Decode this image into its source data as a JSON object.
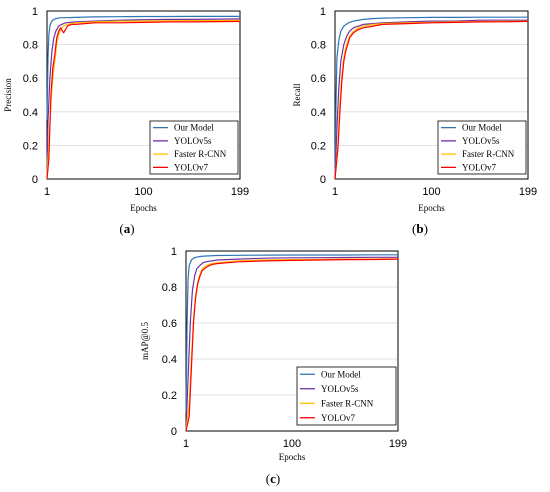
{
  "chart_data": [
    {
      "id": "a",
      "type": "line",
      "caption_letter": "a",
      "xlabel": "Epochs",
      "ylabel": "Precision",
      "xlim": [
        1,
        199
      ],
      "ylim": [
        0,
        1
      ],
      "x_ticks": [
        1,
        100,
        199
      ],
      "y_ticks": [
        0,
        0.2,
        0.4,
        0.6,
        0.8,
        1
      ],
      "x_tick_labels": [
        "1",
        "100",
        "199"
      ],
      "y_tick_labels": [
        "0",
        "0.2",
        "0.4",
        "0.6",
        "0.8",
        "1"
      ],
      "grid": "horizontal",
      "legend": "bottom-right",
      "series": [
        {
          "name": "Our Model",
          "color": "#2e75b6",
          "x": [
            1,
            2,
            3,
            4,
            5,
            6,
            8,
            10,
            15,
            20,
            30,
            50,
            75,
            100,
            125,
            150,
            175,
            199
          ],
          "y": [
            0.35,
            0.72,
            0.86,
            0.91,
            0.93,
            0.94,
            0.95,
            0.955,
            0.96,
            0.96,
            0.962,
            0.965,
            0.966,
            0.967,
            0.967,
            0.968,
            0.968,
            0.968
          ]
        },
        {
          "name": "YOLOv5s",
          "color": "#7030a0",
          "x": [
            1,
            2,
            4,
            6,
            8,
            10,
            13,
            16,
            20,
            30,
            50,
            75,
            100,
            125,
            150,
            175,
            199
          ],
          "y": [
            0.05,
            0.35,
            0.6,
            0.76,
            0.84,
            0.88,
            0.91,
            0.92,
            0.93,
            0.935,
            0.94,
            0.945,
            0.948,
            0.95,
            0.95,
            0.952,
            0.953
          ]
        },
        {
          "name": "Faster R-CNN",
          "color": "#ffc000",
          "x": [
            1,
            3,
            5,
            7,
            9,
            11,
            13,
            15,
            18,
            22,
            30,
            50,
            75,
            100,
            125,
            150,
            175,
            199
          ],
          "y": [
            0.02,
            0.2,
            0.45,
            0.6,
            0.7,
            0.8,
            0.86,
            0.89,
            0.91,
            0.92,
            0.93,
            0.935,
            0.94,
            0.94,
            0.942,
            0.943,
            0.943,
            0.944
          ]
        },
        {
          "name": "YOLOv7",
          "color": "#ff0000",
          "x": [
            1,
            3,
            5,
            7,
            9,
            11,
            13,
            15,
            18,
            22,
            26,
            30,
            40,
            50,
            75,
            100,
            125,
            150,
            175,
            199
          ],
          "y": [
            0.0,
            0.12,
            0.5,
            0.66,
            0.74,
            0.84,
            0.88,
            0.9,
            0.87,
            0.91,
            0.92,
            0.92,
            0.925,
            0.93,
            0.93,
            0.932,
            0.935,
            0.935,
            0.937,
            0.938
          ]
        }
      ]
    },
    {
      "id": "b",
      "type": "line",
      "caption_letter": "b",
      "xlabel": "Epochs",
      "ylabel": "Recall",
      "xlim": [
        1,
        199
      ],
      "ylim": [
        0,
        1
      ],
      "x_ticks": [
        1,
        100,
        199
      ],
      "y_ticks": [
        0,
        0.2,
        0.4,
        0.6,
        0.8,
        1
      ],
      "x_tick_labels": [
        "1",
        "100",
        "199"
      ],
      "y_tick_labels": [
        "0",
        "0.2",
        "0.4",
        "0.6",
        "0.8",
        "1"
      ],
      "grid": "horizontal",
      "legend": "bottom-right",
      "series": [
        {
          "name": "Our Model",
          "color": "#2e75b6",
          "x": [
            1,
            2,
            3,
            5,
            7,
            10,
            15,
            20,
            30,
            40,
            50,
            75,
            100,
            125,
            150,
            175,
            199
          ],
          "y": [
            0.0,
            0.45,
            0.72,
            0.83,
            0.88,
            0.91,
            0.93,
            0.94,
            0.95,
            0.955,
            0.958,
            0.96,
            0.962,
            0.962,
            0.963,
            0.963,
            0.963
          ]
        },
        {
          "name": "YOLOv5s",
          "color": "#7030a0",
          "x": [
            1,
            3,
            5,
            7,
            10,
            13,
            16,
            20,
            25,
            30,
            40,
            50,
            75,
            100,
            125,
            150,
            175,
            199
          ],
          "y": [
            0.0,
            0.3,
            0.55,
            0.7,
            0.8,
            0.85,
            0.88,
            0.9,
            0.91,
            0.92,
            0.925,
            0.93,
            0.935,
            0.94,
            0.94,
            0.945,
            0.945,
            0.945
          ]
        },
        {
          "name": "Faster R-CNN",
          "color": "#ffc000",
          "x": [
            1,
            4,
            6,
            8,
            10,
            12,
            14,
            16,
            20,
            25,
            30,
            40,
            50,
            75,
            100,
            125,
            150,
            175,
            199
          ],
          "y": [
            0.0,
            0.2,
            0.45,
            0.62,
            0.72,
            0.78,
            0.82,
            0.85,
            0.88,
            0.9,
            0.91,
            0.92,
            0.925,
            0.93,
            0.932,
            0.935,
            0.937,
            0.938,
            0.94
          ]
        },
        {
          "name": "YOLOv7",
          "color": "#ff0000",
          "x": [
            1,
            4,
            6,
            8,
            10,
            12,
            14,
            16,
            20,
            25,
            30,
            40,
            50,
            75,
            100,
            125,
            150,
            175,
            199
          ],
          "y": [
            0.0,
            0.18,
            0.4,
            0.58,
            0.7,
            0.76,
            0.8,
            0.84,
            0.87,
            0.89,
            0.9,
            0.91,
            0.92,
            0.925,
            0.93,
            0.932,
            0.935,
            0.936,
            0.938
          ]
        }
      ]
    },
    {
      "id": "c",
      "type": "line",
      "caption_letter": "c",
      "xlabel": "Epochs",
      "ylabel": "mAP@0.5",
      "xlim": [
        1,
        199
      ],
      "ylim": [
        0,
        1
      ],
      "x_ticks": [
        1,
        100,
        199
      ],
      "y_ticks": [
        0,
        0.2,
        0.4,
        0.6,
        0.8,
        1
      ],
      "x_tick_labels": [
        "1",
        "100",
        "199"
      ],
      "y_tick_labels": [
        "0",
        "0.2",
        "0.4",
        "0.6",
        "0.8",
        "1"
      ],
      "grid": "horizontal",
      "legend": "bottom-right",
      "series": [
        {
          "name": "Our Model",
          "color": "#2e75b6",
          "x": [
            1,
            2,
            3,
            4,
            6,
            8,
            10,
            15,
            20,
            30,
            50,
            75,
            100,
            125,
            150,
            175,
            199
          ],
          "y": [
            0.1,
            0.6,
            0.85,
            0.92,
            0.95,
            0.96,
            0.965,
            0.97,
            0.972,
            0.975,
            0.976,
            0.977,
            0.978,
            0.978,
            0.978,
            0.979,
            0.979
          ]
        },
        {
          "name": "YOLOv5s",
          "color": "#7030a0",
          "x": [
            1,
            3,
            5,
            7,
            9,
            11,
            14,
            17,
            20,
            30,
            50,
            75,
            100,
            125,
            150,
            175,
            199
          ],
          "y": [
            0.0,
            0.3,
            0.6,
            0.78,
            0.86,
            0.9,
            0.92,
            0.935,
            0.94,
            0.95,
            0.955,
            0.96,
            0.962,
            0.963,
            0.964,
            0.965,
            0.965
          ]
        },
        {
          "name": "Faster R-CNN",
          "color": "#ffc000",
          "x": [
            1,
            4,
            6,
            8,
            10,
            12,
            14,
            16,
            20,
            25,
            30,
            40,
            50,
            75,
            100,
            125,
            150,
            175,
            199
          ],
          "y": [
            0.0,
            0.15,
            0.4,
            0.62,
            0.75,
            0.83,
            0.87,
            0.9,
            0.92,
            0.93,
            0.935,
            0.94,
            0.945,
            0.95,
            0.952,
            0.953,
            0.955,
            0.955,
            0.956
          ]
        },
        {
          "name": "YOLOv7",
          "color": "#ff0000",
          "x": [
            1,
            4,
            6,
            8,
            10,
            12,
            14,
            16,
            20,
            25,
            30,
            40,
            50,
            75,
            100,
            125,
            150,
            175,
            199
          ],
          "y": [
            0.0,
            0.08,
            0.35,
            0.6,
            0.74,
            0.82,
            0.86,
            0.89,
            0.91,
            0.925,
            0.93,
            0.935,
            0.94,
            0.945,
            0.948,
            0.95,
            0.952,
            0.953,
            0.955
          ]
        }
      ]
    }
  ]
}
